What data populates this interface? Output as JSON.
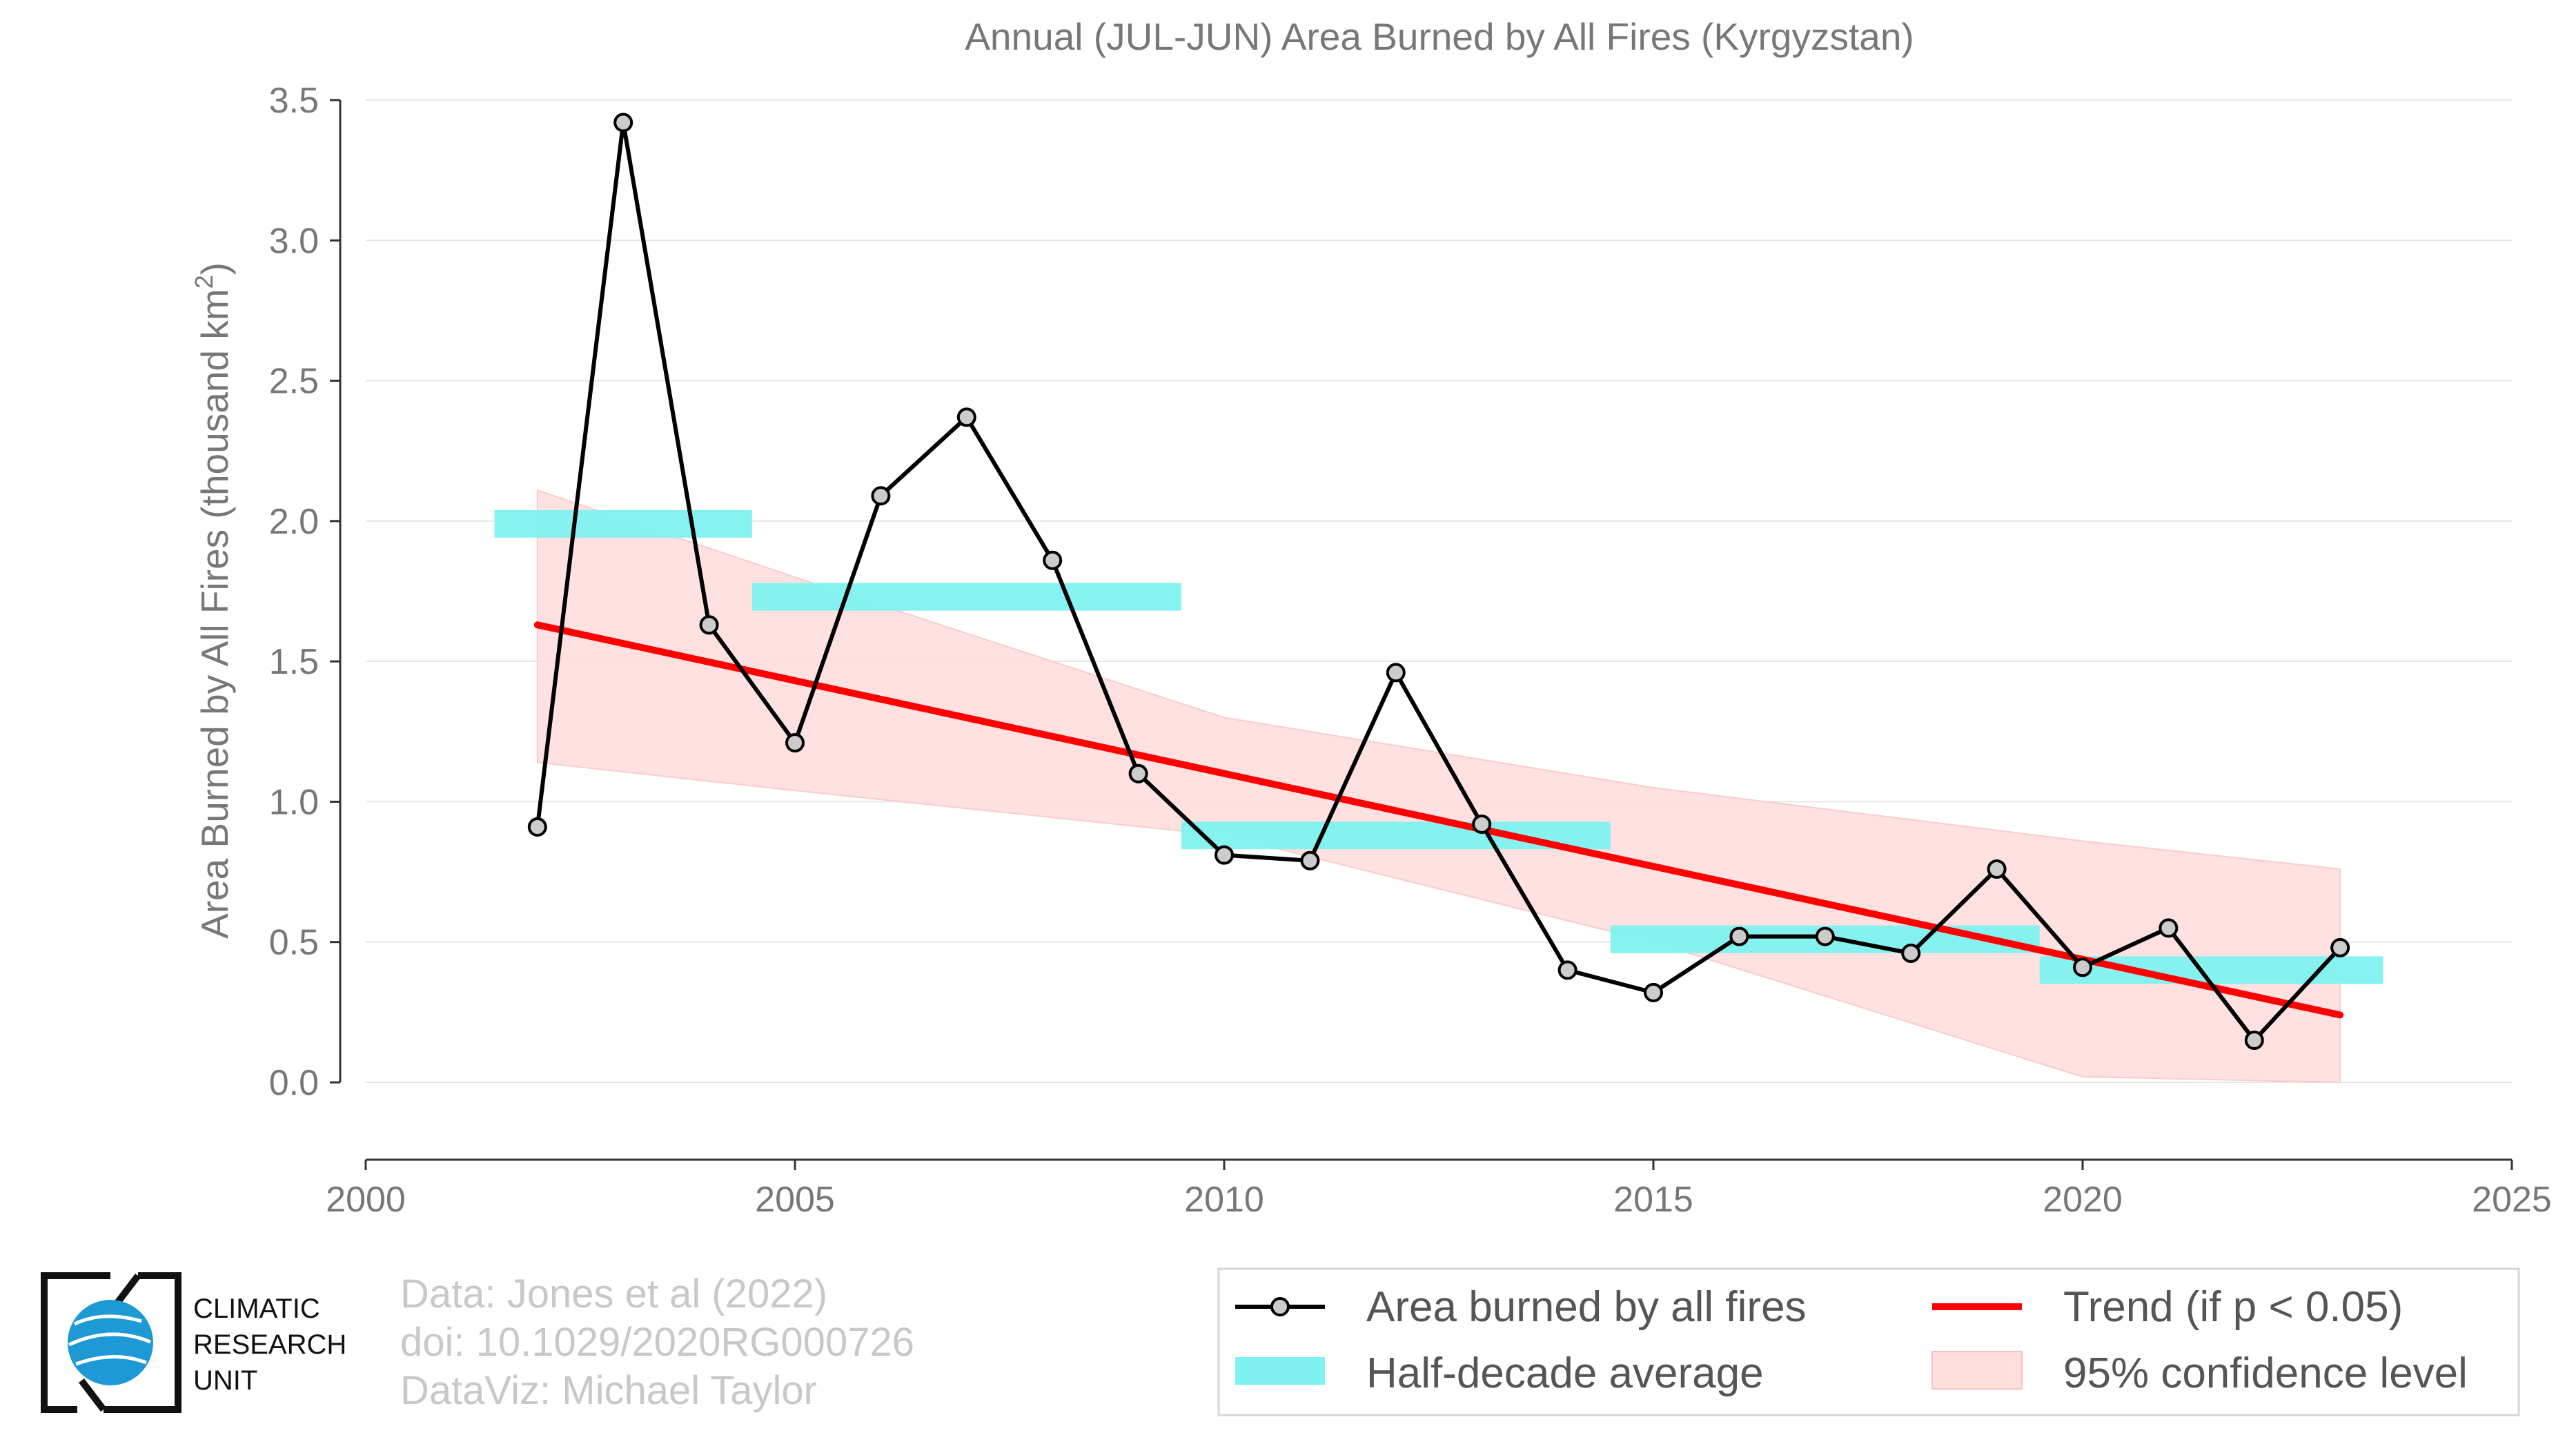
{
  "chart_data": {
    "type": "line",
    "title": "Annual (JUL-JUN) Area Burned by All Fires (Kyrgyzstan)",
    "ylabel_prefix": "Area Burned by All Fires (thousand km",
    "ylabel_sup": "2",
    "ylabel_suffix": ")",
    "xlim": [
      2000,
      2025
    ],
    "ylim": [
      0,
      3.5
    ],
    "grid": true,
    "x_ticks": [
      2000,
      2005,
      2010,
      2015,
      2020,
      2025
    ],
    "x_tick_labels": [
      "2000",
      "2005",
      "2010",
      "2015",
      "2020",
      "2025"
    ],
    "y_ticks": [
      0,
      0.5,
      1.0,
      1.5,
      2.0,
      2.5,
      3.0,
      3.5
    ],
    "y_tick_labels": [
      "0.0",
      "0.5",
      "1.0",
      "1.5",
      "2.0",
      "2.5",
      "3.0",
      "3.5"
    ],
    "series": [
      {
        "name": "Area burned by all fires",
        "color": "#000000",
        "marker_fill": "#cccccc",
        "x": [
          2002,
          2003,
          2004,
          2005,
          2006,
          2007,
          2008,
          2009,
          2010,
          2011,
          2012,
          2013,
          2014,
          2015,
          2016,
          2017,
          2018,
          2019,
          2020,
          2021,
          2022,
          2023
        ],
        "y": [
          0.91,
          3.42,
          1.63,
          1.21,
          2.09,
          2.37,
          1.86,
          1.1,
          0.81,
          0.79,
          1.46,
          0.92,
          0.4,
          0.32,
          0.52,
          0.52,
          0.46,
          0.76,
          0.41,
          0.55,
          0.15,
          0.48
        ]
      },
      {
        "name": "Half-decade average",
        "color": "#7ff2f0",
        "segments": [
          {
            "x_start": 2001.5,
            "x_end": 2004.5,
            "y": 1.99
          },
          {
            "x_start": 2004.5,
            "x_end": 2009.5,
            "y": 1.73
          },
          {
            "x_start": 2009.5,
            "x_end": 2014.5,
            "y": 0.88
          },
          {
            "x_start": 2014.5,
            "x_end": 2019.5,
            "y": 0.51
          },
          {
            "x_start": 2019.5,
            "x_end": 2023.5,
            "y": 0.4
          }
        ]
      },
      {
        "name": "Trend (if p < 0.05)",
        "color": "#ff0000",
        "x": [
          2002,
          2023
        ],
        "y": [
          1.63,
          0.24
        ]
      },
      {
        "name": "95% confidence level",
        "color": "#ffc8c8",
        "x": [
          2002,
          2005,
          2010,
          2015,
          2020,
          2023
        ],
        "upper": [
          2.11,
          1.8,
          1.3,
          1.05,
          0.86,
          0.76
        ],
        "lower": [
          1.14,
          1.04,
          0.88,
          0.5,
          0.02,
          0.0
        ]
      }
    ],
    "legend_position": "bottom-right"
  },
  "footer": {
    "line1": "Data: Jones et al (2022)",
    "line2": "doi: 10.1029/2020RG000726",
    "line3": "DataViz: Michael Taylor"
  },
  "logo": {
    "line1": "CLIMATIC",
    "line2": "RESEARCH",
    "line3": "UNIT"
  },
  "colors": {
    "axis_text": "#777777",
    "grid": "#e6e6e6",
    "line": "#000000",
    "trend": "#ff0000",
    "half_decade": "#7ff2f0",
    "confidence": "#ffdede",
    "logo_blue": "#1d9ad6"
  }
}
